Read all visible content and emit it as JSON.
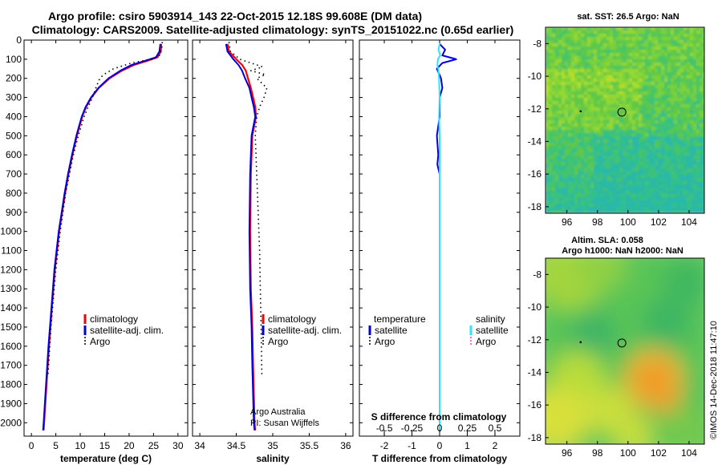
{
  "header": {
    "title_line1": "Argo profile: csiro 5903914_143 22-Oct-2015 12.18S 99.608E (DM data)",
    "title_line2": "Climatology: CARS2009. Satellite-adjusted climatology: synTS_20151022.nc (0.65d earlier)"
  },
  "colors": {
    "climatology": "#ff0000",
    "satellite": "#0000dd",
    "argo": "#000000",
    "sat_salinity": "#33e0ff",
    "argo_salinity": "#ff33cc"
  },
  "credit": "©IMOS 14-Dec-2018 11:47:10",
  "chart_data": [
    {
      "type": "line",
      "id": "temperature",
      "xlabel": "temperature (deg C)",
      "ylabel": "",
      "xlim": [
        -1.5,
        32
      ],
      "ylim": [
        2070,
        0
      ],
      "xticks": [
        "0",
        "5",
        "10",
        "15",
        "20",
        "25",
        "30"
      ],
      "yticks": [
        "0",
        "100",
        "200",
        "300",
        "400",
        "500",
        "600",
        "700",
        "800",
        "900",
        "1000",
        "1100",
        "1200",
        "1300",
        "1400",
        "1500",
        "1600",
        "1700",
        "1800",
        "1900",
        "2000"
      ],
      "legend": [
        "climatology",
        "satellite-adj. clim.",
        "Argo"
      ],
      "series": [
        {
          "name": "climatology",
          "pressure": [
            20,
            60,
            90,
            110,
            130,
            160,
            200,
            250,
            300,
            350,
            400,
            500,
            600,
            700,
            800,
            900,
            1000,
            1200,
            1400,
            1600,
            1800,
            2000,
            2040
          ],
          "values": [
            26.6,
            26.5,
            25.8,
            23.5,
            21.0,
            18.5,
            16.0,
            13.8,
            12.3,
            11.2,
            10.4,
            9.3,
            8.4,
            7.6,
            6.9,
            6.3,
            5.7,
            4.8,
            4.2,
            3.6,
            3.1,
            2.6,
            2.5
          ]
        },
        {
          "name": "satellite-adj. clim.",
          "pressure": [
            20,
            60,
            90,
            110,
            130,
            160,
            200,
            250,
            300,
            350,
            400,
            500,
            600,
            700,
            800,
            900,
            1000,
            1200,
            1400,
            1600,
            1800,
            2000,
            2040
          ],
          "values": [
            26.4,
            26.2,
            25.5,
            23.0,
            20.5,
            18.2,
            15.8,
            13.7,
            12.2,
            11.1,
            10.3,
            9.2,
            8.3,
            7.5,
            6.8,
            6.2,
            5.6,
            4.7,
            4.1,
            3.5,
            3.0,
            2.5,
            2.4
          ]
        },
        {
          "name": "Argo",
          "pressure": [
            10,
            40,
            80,
            100,
            120,
            150,
            180,
            200,
            250,
            300,
            350,
            400,
            500,
            600,
            700,
            800,
            1000,
            1200,
            1500,
            1750
          ],
          "values": [
            26.8,
            26.7,
            26.2,
            24.5,
            20.5,
            16.8,
            14.8,
            14.0,
            13.2,
            12.5,
            11.6,
            10.8,
            9.6,
            8.6,
            7.8,
            7.0,
            5.9,
            5.0,
            4.0,
            3.4
          ]
        }
      ],
      "annotations": []
    },
    {
      "type": "line",
      "id": "salinity",
      "xlabel": "salinity",
      "ylabel": "",
      "xlim": [
        33.9,
        36.1
      ],
      "ylim": [
        2070,
        0
      ],
      "xticks": [
        "34",
        "34.5",
        "35",
        "35.5",
        "36"
      ],
      "legend": [
        "climatology",
        "satellite-adj. clim.",
        "Argo"
      ],
      "series": [
        {
          "name": "climatology",
          "pressure": [
            20,
            60,
            100,
            130,
            160,
            200,
            250,
            300,
            350,
            400,
            500,
            700,
            1000,
            1300,
            1500,
            1700,
            2000,
            2040
          ],
          "values": [
            34.38,
            34.4,
            34.5,
            34.58,
            34.63,
            34.66,
            34.7,
            34.73,
            34.76,
            34.77,
            34.72,
            34.7,
            34.69,
            34.7,
            34.72,
            34.73,
            34.75,
            34.76
          ]
        },
        {
          "name": "satellite-adj. clim.",
          "pressure": [
            20,
            60,
            100,
            130,
            160,
            200,
            250,
            300,
            350,
            400,
            500,
            700,
            1000,
            1300,
            1500,
            1700,
            2000,
            2040
          ],
          "values": [
            34.36,
            34.38,
            34.46,
            34.53,
            34.58,
            34.62,
            34.68,
            34.71,
            34.74,
            34.76,
            34.71,
            34.69,
            34.68,
            34.69,
            34.71,
            34.72,
            34.74,
            34.75
          ]
        },
        {
          "name": "Argo",
          "pressure": [
            10,
            60,
            100,
            140,
            160,
            180,
            200,
            250,
            300,
            350,
            400,
            500,
            700,
            900,
            1100,
            1300,
            1500,
            1750
          ],
          "values": [
            34.4,
            34.42,
            34.55,
            34.86,
            34.7,
            34.9,
            34.78,
            34.92,
            34.88,
            34.82,
            34.78,
            34.76,
            34.78,
            34.8,
            34.82,
            34.83,
            34.84,
            34.85
          ]
        }
      ],
      "annotations": [
        "Argo Australia",
        "PI: Susan Wijffels"
      ]
    },
    {
      "type": "line",
      "id": "difference",
      "xlabel": "T difference from climatology",
      "ylabel": "",
      "xlim": [
        -2.9,
        2.9
      ],
      "ylim": [
        2070,
        0
      ],
      "xticks": [
        "-2",
        "-1",
        "0",
        "1",
        "2"
      ],
      "top_axis_label": "S difference from climatology",
      "top_xlim": [
        -0.725,
        0.725
      ],
      "top_xticks": [
        "-0.5",
        "-0.25",
        "0",
        "0.25",
        "0.5"
      ],
      "legend_headers": [
        "temperature",
        "salinity"
      ],
      "legend": [
        "satellite",
        "Argo",
        "satellite",
        "Argo"
      ],
      "series": [
        {
          "name": "temperature satellite",
          "pressure": [
            20,
            50,
            80,
            100,
            120,
            150,
            200,
            250,
            300,
            400,
            500,
            600,
            650,
            700,
            1000,
            1500,
            1900
          ],
          "values": [
            0.0,
            0.2,
            0.1,
            0.6,
            0.1,
            -0.1,
            0.05,
            0.1,
            0.0,
            0.0,
            -0.1,
            -0.05,
            -0.08,
            0.0,
            0.0,
            0.0,
            0.0
          ]
        },
        {
          "name": "salinity satellite",
          "pressure": [
            20,
            50,
            80,
            100,
            130,
            160,
            200,
            300,
            400,
            500,
            700,
            1000,
            1500,
            1900,
            2040
          ],
          "values": [
            0.0,
            -0.01,
            0.005,
            -0.015,
            -0.02,
            -0.01,
            -0.005,
            0.0,
            -0.005,
            0.0,
            0.0,
            0.0,
            0.0,
            0.0,
            0.0
          ]
        }
      ]
    },
    {
      "type": "heatmap",
      "id": "sst_map",
      "title": "sat. SST: 26.5 Argo: NaN",
      "xticks": [
        "96",
        "98",
        "100",
        "102",
        "104"
      ],
      "yticks": [
        "-8",
        "-10",
        "-12",
        "-14",
        "-16",
        "-18"
      ],
      "xlim": [
        94.6,
        105
      ],
      "ylim": [
        -18.4,
        -7.0
      ],
      "float_position": [
        99.6,
        -12.2
      ],
      "previous_position": [
        96.9,
        -12.15
      ]
    },
    {
      "type": "heatmap",
      "id": "sla_map",
      "title_line1": "Altim. SLA: 0.058",
      "title_line2": "Argo h1000: NaN h2000: NaN",
      "xticks": [
        "96",
        "98",
        "100",
        "102",
        "104"
      ],
      "yticks": [
        "-8",
        "-10",
        "-12",
        "-14",
        "-16",
        "-18"
      ],
      "xlim": [
        94.6,
        105
      ],
      "ylim": [
        -18.4,
        -7.0
      ],
      "float_position": [
        99.6,
        -12.2
      ],
      "previous_position": [
        96.9,
        -12.15
      ]
    }
  ]
}
